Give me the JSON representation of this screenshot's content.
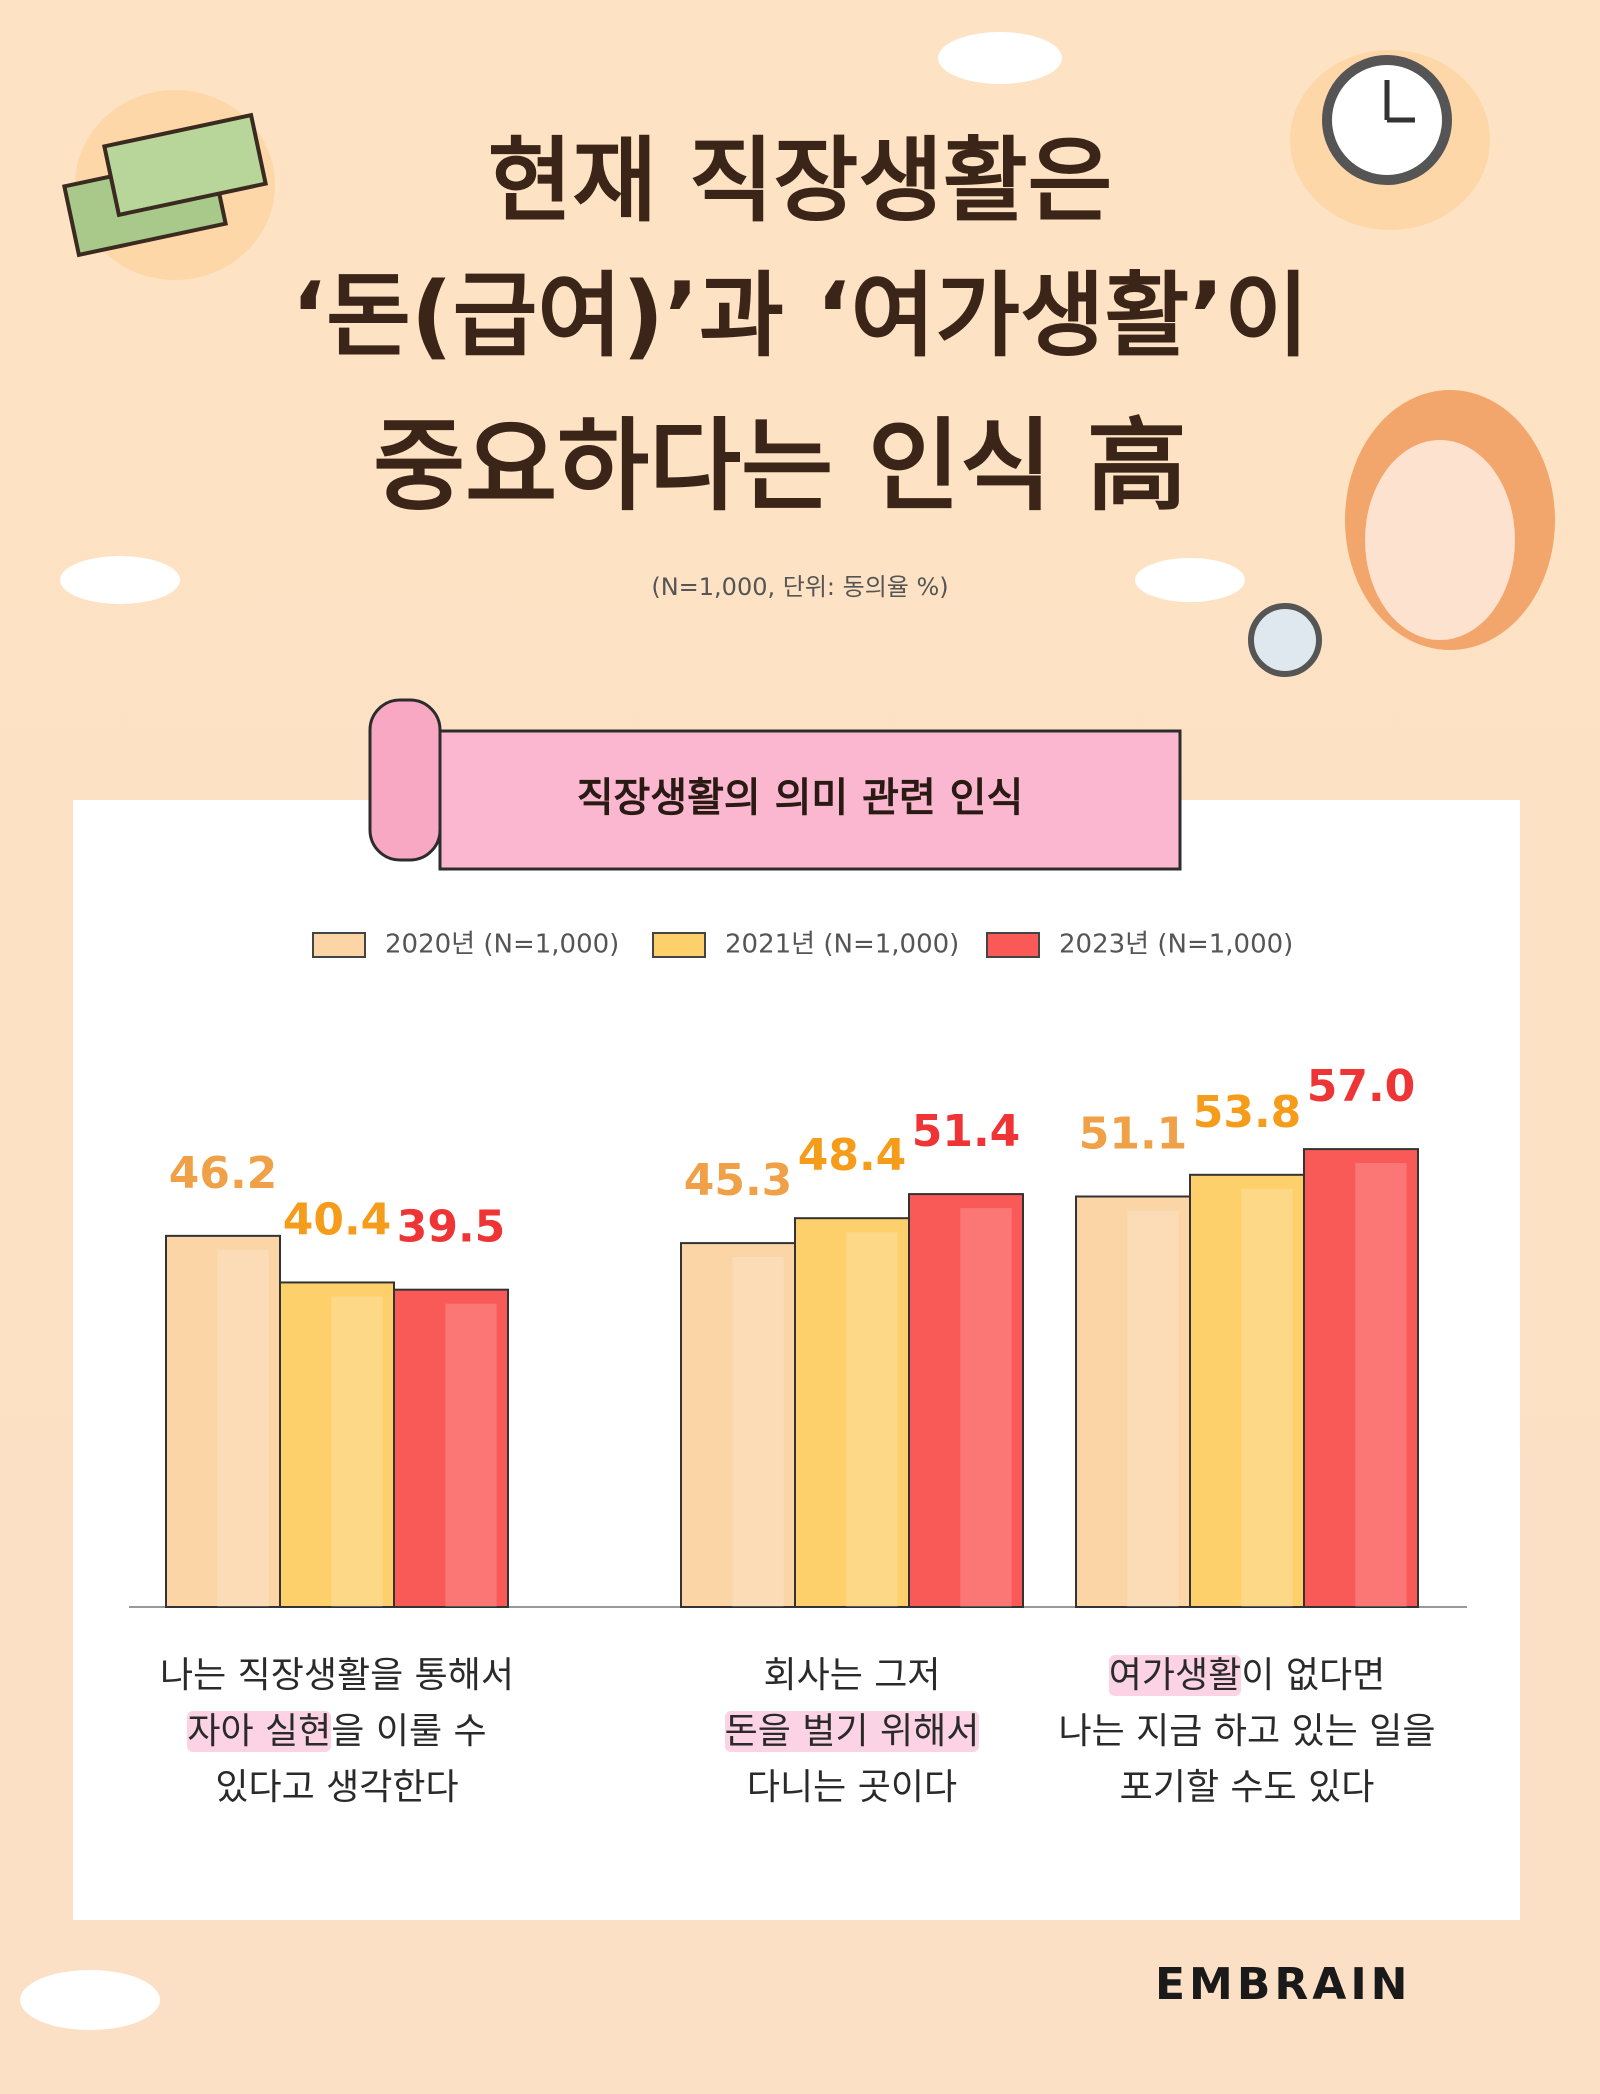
{
  "chart_data": {
    "type": "bar",
    "title": [
      "현재 직장생활은",
      "‘돈(급여)’과 ‘여가생활’이",
      "중요하다는 인식 高"
    ],
    "subtitle": "(N=1,000, 단위: 동의율 %)",
    "panel_title": "직장생활의 의미 관련 인식",
    "categories": [
      [
        [
          "나는 직장생활을 통해서"
        ],
        [
          {
            "text": "자아 실현",
            "highlight": true
          },
          "을 이룰 수"
        ],
        [
          "있다고 생각한다"
        ]
      ],
      [
        [
          "회사는 그저"
        ],
        [
          {
            "text": "돈을 벌기 위해서",
            "highlight": true
          }
        ],
        [
          "다니는 곳이다"
        ]
      ],
      [
        [
          {
            "text": "여가생활",
            "highlight": true
          },
          "이 없다면"
        ],
        [
          "나는 지금 하고 있는 일을"
        ],
        [
          "포기할 수도 있다"
        ]
      ]
    ],
    "series": [
      {
        "name": "2020년 (N=1,000)",
        "color": "#fcd5a6",
        "label_color": "#f0a046",
        "values": [
          46.2,
          45.3,
          51.1
        ],
        "value_labels": [
          "46.2",
          "45.3",
          "51.1"
        ]
      },
      {
        "name": "2021년 (N=1,000)",
        "color": "#fdd06c",
        "label_color": "#f59c1a",
        "values": [
          40.4,
          48.4,
          53.8
        ],
        "value_labels": [
          "40.4",
          "48.4",
          "53.8"
        ]
      },
      {
        "name": "2023년 (N=1,000)",
        "color": "#f95a58",
        "label_color": "#ee3434",
        "values": [
          39.5,
          51.4,
          57.0
        ],
        "value_labels": [
          "39.5",
          "51.4",
          "57.0"
        ]
      }
    ],
    "ylim": [
      0,
      60
    ],
    "brand": "EMBRAIN"
  }
}
